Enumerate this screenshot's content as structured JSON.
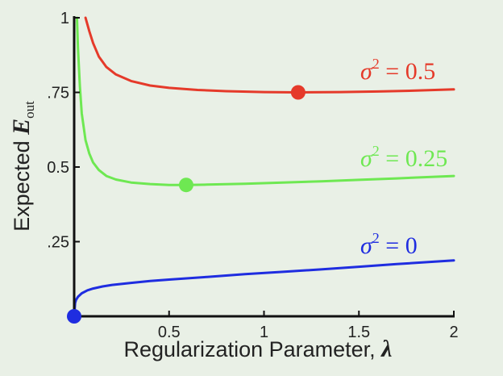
{
  "chart_data": {
    "type": "line",
    "xlabel": "Regularization Parameter, λ",
    "ylabel": "Expected E_out",
    "ylabel_parts": {
      "main": "Expected ",
      "symbol": "E",
      "subscript": "out"
    },
    "xlabel_parts": {
      "main": "Regularization Parameter, ",
      "symbol": "λ"
    },
    "xlim": [
      0,
      2
    ],
    "ylim": [
      0,
      1
    ],
    "x_ticks": [
      {
        "value": 0.5,
        "label": "0.5"
      },
      {
        "value": 1,
        "label": "1"
      },
      {
        "value": 1.5,
        "label": "1.5"
      },
      {
        "value": 2,
        "label": "2"
      }
    ],
    "y_ticks": [
      {
        "value": 0.25,
        "label": ".25"
      },
      {
        "value": 0.5,
        "label": "0.5"
      },
      {
        "value": 0.75,
        "label": ".75"
      },
      {
        "value": 1,
        "label": "1"
      }
    ],
    "grid": false,
    "series": [
      {
        "name": "σ² = 0.5",
        "label_main": "σ",
        "label_sup": "2",
        "label_rest": " = 0.5",
        "color": "#e53a2a",
        "x": [
          0.06,
          0.08,
          0.1,
          0.13,
          0.17,
          0.22,
          0.3,
          0.4,
          0.5,
          0.65,
          0.8,
          1.0,
          1.18,
          1.4,
          1.6,
          1.8,
          2.0
        ],
        "y": [
          1.0,
          0.955,
          0.915,
          0.87,
          0.835,
          0.81,
          0.788,
          0.773,
          0.765,
          0.758,
          0.754,
          0.751,
          0.75,
          0.751,
          0.753,
          0.756,
          0.76
        ],
        "minimum": {
          "x": 1.18,
          "y": 0.75
        }
      },
      {
        "name": "σ² = 0.25",
        "label_main": "σ",
        "label_sup": "2",
        "label_rest": " = 0.25",
        "color": "#6ee852",
        "x": [
          0.015,
          0.02,
          0.03,
          0.04,
          0.06,
          0.08,
          0.1,
          0.13,
          0.17,
          0.22,
          0.3,
          0.4,
          0.5,
          0.59,
          0.7,
          0.9,
          1.1,
          1.3,
          1.5,
          1.7,
          2.0
        ],
        "y": [
          1.0,
          0.9,
          0.77,
          0.68,
          0.59,
          0.545,
          0.515,
          0.49,
          0.47,
          0.458,
          0.448,
          0.443,
          0.44,
          0.44,
          0.441,
          0.444,
          0.448,
          0.452,
          0.457,
          0.462,
          0.47
        ],
        "minimum": {
          "x": 0.59,
          "y": 0.44
        }
      },
      {
        "name": "σ² = 0",
        "label_main": "σ",
        "label_sup": "2",
        "label_rest": " = 0",
        "color": "#1f2de0",
        "x": [
          0.0,
          0.005,
          0.01,
          0.02,
          0.04,
          0.07,
          0.1,
          0.15,
          0.2,
          0.3,
          0.4,
          0.5,
          0.7,
          0.9,
          1.1,
          1.3,
          1.5,
          1.7,
          2.0
        ],
        "y": [
          0.0,
          0.045,
          0.055,
          0.065,
          0.077,
          0.087,
          0.093,
          0.1,
          0.105,
          0.112,
          0.118,
          0.123,
          0.132,
          0.141,
          0.149,
          0.157,
          0.166,
          0.175,
          0.187
        ],
        "minimum": {
          "x": 0.0,
          "y": 0.0
        }
      }
    ]
  }
}
